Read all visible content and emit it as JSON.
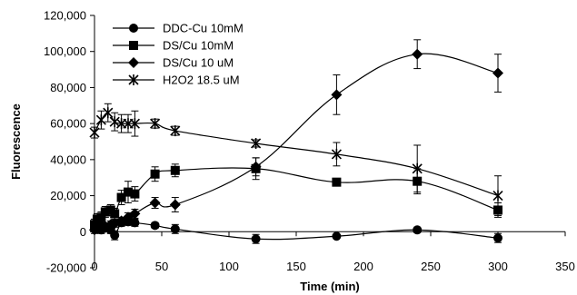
{
  "chart_data": {
    "type": "scatter",
    "title": "",
    "xlabel": "Time (min)",
    "ylabel": "Fluorescence",
    "xlim": [
      0,
      350
    ],
    "ylim": [
      -20000,
      120000
    ],
    "xticks": [
      0,
      50,
      100,
      150,
      200,
      250,
      300,
      350
    ],
    "yticks": [
      -20000,
      0,
      20000,
      40000,
      60000,
      80000,
      100000,
      120000
    ],
    "xtick_labels": [
      "0",
      "50",
      "100",
      "150",
      "200",
      "250",
      "300",
      "350"
    ],
    "ytick_labels": [
      "-20,000",
      "0",
      "20,000",
      "40,000",
      "60,000",
      "80,000",
      "100,000",
      "120,000"
    ],
    "grid": false,
    "legend_position": "top-left",
    "series": [
      {
        "name": "DDC-Cu 10mM",
        "marker": "circle",
        "color": "#000000",
        "x": [
          0,
          2,
          5,
          8,
          12,
          15,
          20,
          25,
          30,
          45,
          60,
          120,
          180,
          240,
          300
        ],
        "y": [
          2000,
          1500,
          1000,
          2000,
          1000,
          -2000,
          5000,
          5500,
          5000,
          3500,
          1500,
          -4000,
          -2500,
          1000,
          -3500
        ],
        "err": [
          2000,
          2000,
          2000,
          2000,
          2000,
          2500,
          2000,
          2000,
          2000,
          1500,
          2500,
          2500,
          1000,
          1500,
          2500
        ]
      },
      {
        "name": "DS/Cu 10mM",
        "marker": "square",
        "color": "#000000",
        "x": [
          0,
          2,
          5,
          8,
          12,
          15,
          20,
          25,
          30,
          45,
          60,
          120,
          180,
          240,
          300
        ],
        "y": [
          4000,
          7000,
          8000,
          11000,
          12000,
          10000,
          19000,
          22000,
          21000,
          32000,
          34000,
          35000,
          27500,
          28000,
          12000
        ],
        "err": [
          3000,
          3000,
          3000,
          3000,
          3000,
          3000,
          4000,
          6000,
          4000,
          4000,
          3500,
          6000,
          2000,
          7000,
          4000
        ]
      },
      {
        "name": "DS/Cu 10 uM",
        "marker": "diamond",
        "color": "#000000",
        "x": [
          0,
          2,
          5,
          8,
          12,
          15,
          20,
          25,
          30,
          45,
          60,
          120,
          180,
          240,
          300
        ],
        "y": [
          1000,
          2000,
          3500,
          3000,
          4000,
          4500,
          6000,
          8000,
          10000,
          16000,
          15000,
          36000,
          76000,
          98500,
          88000
        ],
        "err": [
          2000,
          2000,
          2000,
          2000,
          2000,
          2000,
          2000,
          2500,
          2500,
          3000,
          4000,
          5000,
          11000,
          8000,
          10500
        ]
      },
      {
        "name": "H2O2 18.5 uM",
        "marker": "star",
        "color": "#000000",
        "x": [
          0,
          5,
          10,
          15,
          20,
          25,
          30,
          45,
          60,
          120,
          180,
          240,
          300
        ],
        "y": [
          55000,
          62000,
          66000,
          61000,
          60000,
          60000,
          60000,
          60000,
          56000,
          49000,
          43000,
          35000,
          20000
        ],
        "err": [
          3000,
          5000,
          5000,
          5000,
          5000,
          5000,
          7000,
          2500,
          2500,
          2000,
          6500,
          13000,
          11000
        ]
      }
    ]
  }
}
